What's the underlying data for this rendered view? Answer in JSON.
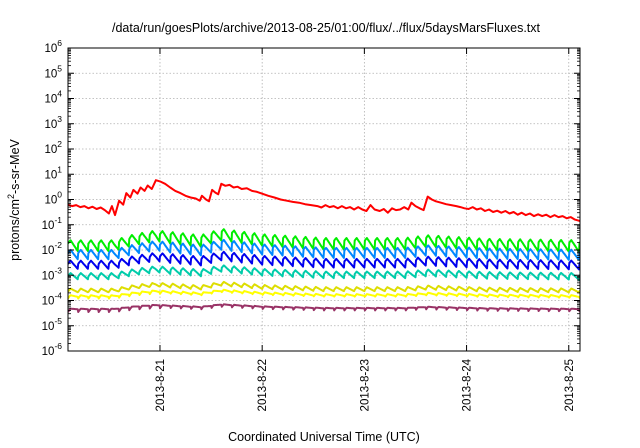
{
  "chart_data": {
    "type": "line",
    "title": "/data/run/goesPlots/archive/2013-08-25/01:00/flux/../flux/5daysMarsFluxes.txt",
    "xlabel": "Coordinated Universal Time (UTC)",
    "ylabel": "protons/cm2-s-sr-MeV",
    "ylabel_parts": {
      "pre": "protons/cm",
      "sup": "2",
      "post": "-s-sr-MeV"
    },
    "y_scale": "log",
    "ylim_exponents": [
      -6,
      6
    ],
    "y_ticks": [
      {
        "base": "10",
        "exp": "-6"
      },
      {
        "base": "10",
        "exp": "-5"
      },
      {
        "base": "10",
        "exp": "-4"
      },
      {
        "base": "10",
        "exp": "-3"
      },
      {
        "base": "10",
        "exp": "-2"
      },
      {
        "base": "10",
        "exp": "-1"
      },
      {
        "base": "10",
        "exp": "0"
      },
      {
        "base": "10",
        "exp": "1"
      },
      {
        "base": "10",
        "exp": "2"
      },
      {
        "base": "10",
        "exp": "3"
      },
      {
        "base": "10",
        "exp": "4"
      },
      {
        "base": "10",
        "exp": "5"
      },
      {
        "base": "10",
        "exp": "6"
      }
    ],
    "x_ticks": [
      "2013-8-21",
      "2013-8-22",
      "2013-8-23",
      "2013-8-24",
      "2013-8-25"
    ],
    "x_tick_days": [
      1,
      2,
      3,
      4,
      5
    ],
    "x_range_days": [
      0.1,
      5.11
    ],
    "grid": true,
    "series": [
      {
        "color": "#ff0000",
        "kind": "events",
        "base": 0.5,
        "points": [
          [
            0.1,
            0.62
          ],
          [
            0.14,
            0.55
          ],
          [
            0.18,
            0.6
          ],
          [
            0.22,
            0.5
          ],
          [
            0.26,
            0.55
          ],
          [
            0.3,
            0.45
          ],
          [
            0.34,
            0.52
          ],
          [
            0.38,
            0.42
          ],
          [
            0.42,
            0.48
          ],
          [
            0.46,
            0.38
          ],
          [
            0.5,
            0.28
          ],
          [
            0.53,
            0.55
          ],
          [
            0.56,
            0.24
          ],
          [
            0.6,
            0.9
          ],
          [
            0.64,
            0.62
          ],
          [
            0.67,
            1.8
          ],
          [
            0.71,
            1.2
          ],
          [
            0.74,
            2.4
          ],
          [
            0.78,
            1.7
          ],
          [
            0.81,
            3.0
          ],
          [
            0.85,
            2.2
          ],
          [
            0.88,
            3.6
          ],
          [
            0.92,
            2.6
          ],
          [
            0.96,
            5.8
          ],
          [
            1.0,
            5.2
          ],
          [
            1.05,
            4.2
          ],
          [
            1.1,
            3.0
          ],
          [
            1.15,
            2.2
          ],
          [
            1.2,
            1.8
          ],
          [
            1.25,
            1.4
          ],
          [
            1.3,
            1.2
          ],
          [
            1.35,
            1.1
          ],
          [
            1.39,
            0.9
          ],
          [
            1.41,
            1.4
          ],
          [
            1.45,
            1.0
          ],
          [
            1.48,
            0.85
          ],
          [
            1.51,
            2.4
          ],
          [
            1.54,
            1.9
          ],
          [
            1.57,
            1.6
          ],
          [
            1.6,
            4.2
          ],
          [
            1.64,
            3.5
          ],
          [
            1.68,
            3.8
          ],
          [
            1.72,
            3.0
          ],
          [
            1.76,
            3.2
          ],
          [
            1.8,
            2.6
          ],
          [
            1.85,
            2.8
          ],
          [
            1.9,
            2.2
          ],
          [
            1.95,
            2.0
          ],
          [
            2.0,
            1.7
          ],
          [
            2.06,
            1.4
          ],
          [
            2.12,
            1.2
          ],
          [
            2.18,
            1.0
          ],
          [
            2.24,
            0.9
          ],
          [
            2.3,
            0.8
          ],
          [
            2.36,
            0.75
          ],
          [
            2.42,
            0.65
          ],
          [
            2.48,
            0.6
          ],
          [
            2.54,
            0.55
          ],
          [
            2.58,
            0.48
          ],
          [
            2.62,
            0.6
          ],
          [
            2.66,
            0.5
          ],
          [
            2.7,
            0.55
          ],
          [
            2.74,
            0.45
          ],
          [
            2.78,
            0.55
          ],
          [
            2.82,
            0.45
          ],
          [
            2.86,
            0.5
          ],
          [
            2.9,
            0.4
          ],
          [
            2.94,
            0.5
          ],
          [
            2.98,
            0.4
          ],
          [
            3.02,
            0.35
          ],
          [
            3.06,
            0.6
          ],
          [
            3.1,
            0.4
          ],
          [
            3.15,
            0.35
          ],
          [
            3.19,
            0.42
          ],
          [
            3.23,
            0.3
          ],
          [
            3.27,
            0.45
          ],
          [
            3.31,
            0.38
          ],
          [
            3.35,
            0.4
          ],
          [
            3.39,
            0.5
          ],
          [
            3.43,
            0.4
          ],
          [
            3.46,
            0.75
          ],
          [
            3.5,
            0.55
          ],
          [
            3.54,
            0.45
          ],
          [
            3.58,
            0.38
          ],
          [
            3.62,
            1.3
          ],
          [
            3.66,
            1.0
          ],
          [
            3.7,
            0.85
          ],
          [
            3.75,
            0.75
          ],
          [
            3.8,
            0.65
          ],
          [
            3.85,
            0.6
          ],
          [
            3.9,
            0.55
          ],
          [
            3.94,
            0.5
          ],
          [
            3.98,
            0.45
          ],
          [
            4.02,
            0.42
          ],
          [
            4.06,
            0.5
          ],
          [
            4.1,
            0.4
          ],
          [
            4.14,
            0.45
          ],
          [
            4.18,
            0.35
          ],
          [
            4.22,
            0.4
          ],
          [
            4.26,
            0.32
          ],
          [
            4.3,
            0.36
          ],
          [
            4.34,
            0.3
          ],
          [
            4.38,
            0.35
          ],
          [
            4.42,
            0.28
          ],
          [
            4.46,
            0.32
          ],
          [
            4.5,
            0.25
          ],
          [
            4.54,
            0.3
          ],
          [
            4.58,
            0.24
          ],
          [
            4.62,
            0.28
          ],
          [
            4.66,
            0.22
          ],
          [
            4.7,
            0.26
          ],
          [
            4.74,
            0.22
          ],
          [
            4.78,
            0.25
          ],
          [
            4.82,
            0.2
          ],
          [
            4.86,
            0.24
          ],
          [
            4.9,
            0.2
          ],
          [
            4.94,
            0.22
          ],
          [
            4.98,
            0.18
          ],
          [
            5.02,
            0.2
          ],
          [
            5.06,
            0.16
          ],
          [
            5.11,
            0.14
          ]
        ]
      },
      {
        "color": "#00ee00",
        "kind": "sawtooth",
        "base": 0.018,
        "amp": 0.35,
        "depth": 0.35
      },
      {
        "color": "#0088ff",
        "kind": "sawtooth",
        "base": 0.0075,
        "amp": 0.35,
        "depth": 0.4
      },
      {
        "color": "#0000ee",
        "kind": "sawtooth",
        "base": 0.0028,
        "amp": 0.35,
        "depth": 0.45
      },
      {
        "color": "#00ccaa",
        "kind": "sawtooth",
        "base": 0.0009,
        "amp": 0.35,
        "depth": 0.55
      },
      {
        "color": "#dddd00",
        "kind": "sawtooth",
        "base": 0.00022,
        "amp": 0.35,
        "depth": 0.7
      },
      {
        "color": "#ffff00",
        "kind": "sawtooth",
        "base": 0.00012,
        "amp": 0.35,
        "depth": 0.85
      },
      {
        "color": "#993366",
        "kind": "sawtooth",
        "base": 3.5e-05,
        "amp": 0.35,
        "depth": 0.95
      }
    ],
    "event_boost": [
      [
        0.1,
        1.0
      ],
      [
        0.55,
        1.0
      ],
      [
        0.75,
        3.0
      ],
      [
        0.96,
        6.0
      ],
      [
        1.4,
        2.5
      ],
      [
        1.6,
        8.0
      ],
      [
        2.0,
        3.0
      ],
      [
        2.6,
        1.5
      ],
      [
        3.4,
        1.5
      ],
      [
        3.62,
        2.5
      ],
      [
        4.2,
        1.3
      ],
      [
        5.11,
        1.0
      ]
    ]
  }
}
